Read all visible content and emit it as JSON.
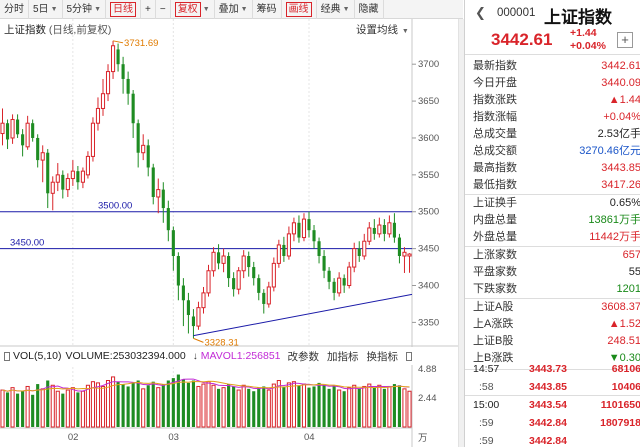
{
  "toolbar": {
    "items": [
      {
        "label": "分时"
      },
      {
        "label": "5日",
        "caret": true
      },
      {
        "label": "5分钟",
        "caret": true
      },
      {
        "label": "日线",
        "boxed": true
      },
      {
        "label": "+"
      },
      {
        "label": "−"
      },
      {
        "label": "复权",
        "boxed": true,
        "caret": true
      },
      {
        "label": "叠加",
        "caret": true
      },
      {
        "label": "筹码"
      },
      {
        "label": "画线",
        "boxed": true
      },
      {
        "label": "经典",
        "caret": true
      },
      {
        "label": "隐藏"
      }
    ]
  },
  "chart": {
    "title": "上证指数",
    "subtitle": "(日线,前复权)",
    "settings_label": "设置均线"
  },
  "volume_header": {
    "indicator": "VOL(5,10)",
    "volume_text": "VOLUME:253032394.000",
    "mavol_text": "MAVOL1:256851",
    "buttons": [
      "改参数",
      "加指标",
      "换指标"
    ]
  },
  "quote": {
    "code": "000001",
    "name": "上证指数",
    "price": "3442.61",
    "change": "+1.44",
    "change_pct": "+0.04%",
    "rows": [
      {
        "label": "最新指数",
        "value": "3442.61",
        "color": "#d9242a"
      },
      {
        "label": "今日开盘",
        "value": "3440.09",
        "color": "#d9242a"
      },
      {
        "label": "指数涨跌",
        "value": "▲1.44",
        "color": "#d9242a"
      },
      {
        "label": "指数涨幅",
        "value": "+0.04%",
        "color": "#d9242a"
      },
      {
        "label": "总成交量",
        "value": "2.53亿手",
        "color": "#222"
      },
      {
        "label": "总成交额",
        "value": "3270.46亿元",
        "color": "#1a55c8"
      },
      {
        "label": "最高指数",
        "value": "3443.85",
        "color": "#d9242a"
      },
      {
        "label": "最低指数",
        "value": "3417.26",
        "color": "#d9242a"
      },
      {
        "label": "上证换手",
        "value": "0.65%",
        "color": "#222"
      },
      {
        "label": "内盘总量",
        "value": "13861万手",
        "color": "#1a8a1a"
      },
      {
        "label": "外盘总量",
        "value": "11442万手",
        "color": "#d9242a"
      },
      {
        "label": "上涨家数",
        "value": "657",
        "color": "#d9242a"
      },
      {
        "label": "平盘家数",
        "value": "55",
        "color": "#222"
      },
      {
        "label": "下跌家数",
        "value": "1201",
        "color": "#1a8a1a"
      },
      {
        "label": "上证A股",
        "value": "3608.37",
        "color": "#d9242a"
      },
      {
        "label": "上A涨跌",
        "value": "▲1.52",
        "color": "#d9242a"
      },
      {
        "label": "上证B股",
        "value": "248.51",
        "color": "#d9242a"
      },
      {
        "label": "上B涨跌",
        "value": "▼0.30",
        "color": "#1a8a1a"
      }
    ],
    "ticks": [
      {
        "time": "14:57",
        "price": "3443.73",
        "volume": "68106",
        "sub": false
      },
      {
        "time": ":58",
        "price": "3443.85",
        "volume": "10406",
        "sub": true
      },
      {
        "time": "15:00",
        "price": "3443.54",
        "volume": "1101650",
        "sub": false
      },
      {
        "time": ":59",
        "price": "3442.84",
        "volume": "1807918",
        "sub": true
      },
      {
        "time": ":59",
        "price": "3442.84",
        "volume": "",
        "sub": true
      }
    ]
  },
  "chart_data": {
    "type": "candlestick",
    "y_ticks": [
      3350,
      3400,
      3450,
      3500,
      3550,
      3600,
      3650,
      3700
    ],
    "ylim": [
      3318,
      3745
    ],
    "x_ticks": [
      {
        "label": "02",
        "index": 14
      },
      {
        "label": "03",
        "index": 34
      },
      {
        "label": "04",
        "index": 61
      }
    ],
    "annotations": [
      {
        "text": "3731.69",
        "index": 22,
        "value": 3731.69
      },
      {
        "text": "3328.31",
        "index": 38,
        "value": 3328.31
      }
    ],
    "h_lines": [
      {
        "value": 3500,
        "label": "3500.00"
      },
      {
        "value": 3450,
        "label": "3450.00"
      }
    ],
    "trend_line": {
      "from": {
        "index": 38,
        "value": 3332
      },
      "to": {
        "index": 82,
        "value": 3388
      }
    },
    "volume_ticks": [
      "4.88",
      "2.44",
      "万"
    ],
    "volume_ylim": [
      0,
      5.2
    ],
    "candles": [
      [
        3606,
        3620,
        3640,
        3590
      ],
      [
        3620,
        3598,
        3625,
        3585
      ],
      [
        3600,
        3625,
        3632,
        3592
      ],
      [
        3625,
        3605,
        3632,
        3600
      ],
      [
        3605,
        3590,
        3612,
        3575
      ],
      [
        3588,
        3620,
        3630,
        3584
      ],
      [
        3620,
        3600,
        3625,
        3595
      ],
      [
        3600,
        3570,
        3605,
        3560
      ],
      [
        3570,
        3580,
        3590,
        3540
      ],
      [
        3580,
        3525,
        3585,
        3505
      ],
      [
        3525,
        3540,
        3548,
        3502
      ],
      [
        3540,
        3550,
        3566,
        3528
      ],
      [
        3550,
        3530,
        3556,
        3518
      ],
      [
        3530,
        3545,
        3552,
        3520
      ],
      [
        3545,
        3555,
        3570,
        3535
      ],
      [
        3555,
        3540,
        3562,
        3530
      ],
      [
        3540,
        3555,
        3560,
        3532
      ],
      [
        3550,
        3575,
        3582,
        3545
      ],
      [
        3575,
        3620,
        3628,
        3568
      ],
      [
        3620,
        3640,
        3655,
        3610
      ],
      [
        3640,
        3660,
        3680,
        3630
      ],
      [
        3660,
        3690,
        3700,
        3650
      ],
      [
        3690,
        3725,
        3731.69,
        3680
      ],
      [
        3720,
        3700,
        3728,
        3690
      ],
      [
        3700,
        3680,
        3710,
        3660
      ],
      [
        3680,
        3660,
        3690,
        3645
      ],
      [
        3660,
        3620,
        3665,
        3600
      ],
      [
        3620,
        3580,
        3625,
        3560
      ],
      [
        3580,
        3590,
        3605,
        3570
      ],
      [
        3590,
        3560,
        3598,
        3548
      ],
      [
        3560,
        3520,
        3565,
        3510
      ],
      [
        3520,
        3530,
        3545,
        3498
      ],
      [
        3530,
        3505,
        3540,
        3485
      ],
      [
        3505,
        3475,
        3515,
        3460
      ],
      [
        3475,
        3440,
        3480,
        3420
      ],
      [
        3440,
        3400,
        3445,
        3380
      ],
      [
        3400,
        3380,
        3410,
        3345
      ],
      [
        3380,
        3360,
        3390,
        3335
      ],
      [
        3358,
        3345,
        3368,
        3328.31
      ],
      [
        3345,
        3370,
        3378,
        3340
      ],
      [
        3370,
        3390,
        3398,
        3362
      ],
      [
        3390,
        3420,
        3428,
        3385
      ],
      [
        3420,
        3445,
        3452,
        3412
      ],
      [
        3445,
        3430,
        3456,
        3422
      ],
      [
        3430,
        3440,
        3450,
        3418
      ],
      [
        3440,
        3410,
        3445,
        3398
      ],
      [
        3410,
        3395,
        3418,
        3385
      ],
      [
        3395,
        3420,
        3425,
        3388
      ],
      [
        3420,
        3440,
        3448,
        3410
      ],
      [
        3440,
        3425,
        3446,
        3412
      ],
      [
        3425,
        3410,
        3432,
        3400
      ],
      [
        3410,
        3390,
        3415,
        3380
      ],
      [
        3390,
        3375,
        3395,
        3362
      ],
      [
        3375,
        3398,
        3405,
        3370
      ],
      [
        3398,
        3430,
        3438,
        3392
      ],
      [
        3430,
        3455,
        3462,
        3424
      ],
      [
        3455,
        3440,
        3466,
        3432
      ],
      [
        3440,
        3470,
        3480,
        3435
      ],
      [
        3470,
        3485,
        3492,
        3460
      ],
      [
        3485,
        3465,
        3495,
        3458
      ],
      [
        3465,
        3490,
        3498,
        3460
      ],
      [
        3490,
        3475,
        3500,
        3465
      ],
      [
        3475,
        3460,
        3482,
        3450
      ],
      [
        3460,
        3440,
        3465,
        3430
      ],
      [
        3440,
        3420,
        3448,
        3410
      ],
      [
        3420,
        3405,
        3425,
        3395
      ],
      [
        3405,
        3390,
        3410,
        3380
      ],
      [
        3390,
        3410,
        3418,
        3385
      ],
      [
        3410,
        3400,
        3415,
        3390
      ],
      [
        3400,
        3425,
        3432,
        3396
      ],
      [
        3425,
        3450,
        3458,
        3418
      ],
      [
        3450,
        3440,
        3460,
        3432
      ],
      [
        3440,
        3460,
        3470,
        3435
      ],
      [
        3460,
        3478,
        3486,
        3455
      ],
      [
        3478,
        3470,
        3490,
        3462
      ],
      [
        3470,
        3482,
        3492,
        3465
      ],
      [
        3482,
        3470,
        3490,
        3460
      ],
      [
        3470,
        3485,
        3495,
        3465
      ],
      [
        3485,
        3465,
        3498,
        3458
      ],
      [
        3465,
        3440,
        3470,
        3430
      ],
      [
        3440,
        3445,
        3452,
        3417
      ],
      [
        3440,
        3442.61,
        3443.85,
        3417.26
      ]
    ],
    "volumes": [
      3.1,
      2.9,
      3.3,
      2.8,
      3.0,
      3.4,
      2.7,
      3.6,
      3.2,
      3.9,
      3.5,
      3.0,
      2.8,
      3.1,
      3.3,
      2.9,
      3.0,
      3.5,
      3.8,
      3.7,
      3.4,
      3.9,
      4.2,
      3.8,
      3.6,
      3.4,
      3.7,
      3.9,
      3.2,
      3.5,
      3.8,
      3.3,
      3.6,
      3.9,
      4.1,
      4.4,
      4.0,
      3.7,
      3.9,
      3.4,
      3.6,
      3.8,
      3.5,
      3.2,
      3.3,
      3.6,
      3.4,
      3.1,
      3.5,
      3.2,
      3.0,
      3.3,
      3.4,
      3.1,
      3.6,
      3.9,
      3.4,
      3.7,
      3.8,
      3.5,
      3.6,
      3.3,
      3.4,
      3.7,
      3.5,
      3.2,
      3.4,
      3.1,
      3.0,
      3.3,
      3.5,
      3.2,
      3.4,
      3.6,
      3.3,
      3.5,
      3.2,
      3.4,
      3.6,
      3.5,
      3.2,
      3.0
    ]
  }
}
